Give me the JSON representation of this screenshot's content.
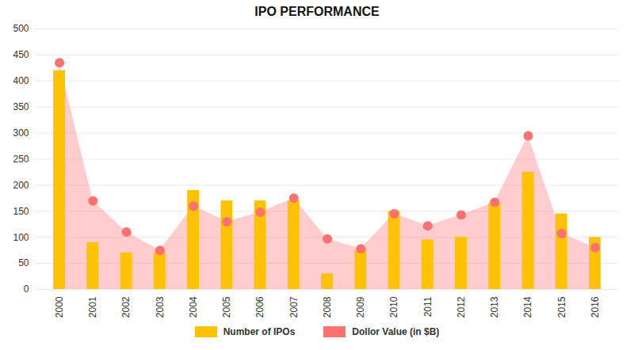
{
  "chart_data": {
    "type": "bar",
    "title": "IPO PERFORMANCE",
    "categories": [
      "2000",
      "2001",
      "2002",
      "2003",
      "2004",
      "2005",
      "2006",
      "2007",
      "2008",
      "2009",
      "2010",
      "2011",
      "2012",
      "2013",
      "2014",
      "2015",
      "2016"
    ],
    "series": [
      {
        "name": "Number of IPOs",
        "type": "bar",
        "color": "#FFC200",
        "values": [
          420,
          90,
          70,
          70,
          190,
          170,
          170,
          170,
          30,
          75,
          150,
          95,
          100,
          165,
          225,
          145,
          100
        ]
      },
      {
        "name": "Dollor Value (in $B)",
        "type": "area",
        "color": "#FF7070",
        "marker": "circle",
        "values": [
          435,
          170,
          110,
          75,
          160,
          130,
          148,
          175,
          97,
          78,
          145,
          122,
          143,
          167,
          295,
          107,
          80
        ]
      }
    ],
    "ylim": [
      0,
      500
    ],
    "yticks": [
      0,
      50,
      100,
      150,
      200,
      250,
      300,
      350,
      400,
      450,
      500
    ],
    "grid": true,
    "legend": "bottom"
  }
}
